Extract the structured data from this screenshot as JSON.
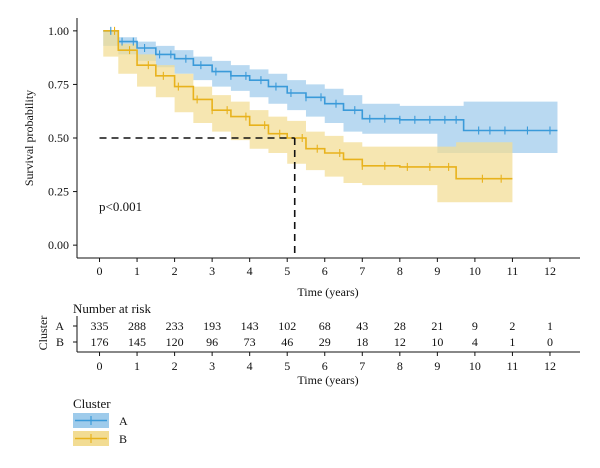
{
  "chart_data": {
    "type": "line",
    "subtype": "kaplan-meier",
    "xlabel": "Time (years)",
    "ylabel": "Survival probability",
    "xlim": [
      -0.6,
      12.8
    ],
    "ylim": [
      -0.06,
      1.06
    ],
    "x_ticks": [
      0,
      1,
      2,
      3,
      4,
      5,
      6,
      7,
      8,
      9,
      10,
      11,
      12
    ],
    "y_ticks": [
      0.0,
      0.25,
      0.5,
      0.75,
      1.0
    ],
    "y_tick_labels": [
      "0.00",
      "0.25",
      "0.50",
      "0.75",
      "1.00"
    ],
    "grid": false,
    "pvalue_text": "p<0.001",
    "median_line": {
      "y": 0.5,
      "x": 5.2
    },
    "series": [
      {
        "name": "A",
        "color": "#3a9ad9",
        "band_color": "#9ecbeb",
        "x": [
          0.1,
          0.5,
          1.0,
          1.5,
          2.0,
          2.5,
          3.0,
          3.5,
          4.0,
          4.5,
          5.0,
          5.5,
          6.0,
          6.5,
          7.0,
          8.0,
          9.0,
          9.7,
          10.0,
          11.0,
          12.2
        ],
        "survival": [
          1.0,
          0.95,
          0.92,
          0.89,
          0.87,
          0.84,
          0.81,
          0.79,
          0.77,
          0.74,
          0.71,
          0.69,
          0.66,
          0.63,
          0.59,
          0.585,
          0.585,
          0.535,
          0.535,
          0.535,
          0.535
        ],
        "lower": [
          1.0,
          0.93,
          0.89,
          0.86,
          0.83,
          0.8,
          0.77,
          0.74,
          0.72,
          0.69,
          0.66,
          0.63,
          0.6,
          0.57,
          0.53,
          0.52,
          0.52,
          0.43,
          0.43,
          0.43,
          0.43
        ],
        "upper": [
          1.0,
          0.97,
          0.95,
          0.93,
          0.91,
          0.88,
          0.86,
          0.84,
          0.82,
          0.8,
          0.77,
          0.75,
          0.73,
          0.7,
          0.66,
          0.65,
          0.65,
          0.67,
          0.67,
          0.67,
          0.67
        ],
        "censor_x": [
          0.3,
          0.6,
          0.9,
          1.2,
          1.6,
          1.9,
          2.3,
          2.7,
          3.1,
          3.5,
          3.9,
          4.3,
          4.7,
          5.1,
          5.5,
          5.9,
          6.3,
          6.8,
          7.2,
          7.6,
          8.0,
          8.4,
          8.8,
          9.2,
          9.5,
          10.1,
          10.4,
          10.8,
          11.4,
          12.0
        ]
      },
      {
        "name": "B",
        "color": "#e8b21c",
        "band_color": "#f2dc93",
        "x": [
          0.1,
          0.5,
          1.0,
          1.5,
          2.0,
          2.5,
          3.0,
          3.5,
          4.0,
          4.5,
          5.0,
          5.5,
          6.0,
          6.5,
          7.0,
          8.0,
          9.0,
          9.5,
          10.0,
          11.0
        ],
        "survival": [
          1.0,
          0.91,
          0.84,
          0.79,
          0.74,
          0.68,
          0.63,
          0.6,
          0.56,
          0.52,
          0.5,
          0.45,
          0.43,
          0.4,
          0.37,
          0.365,
          0.365,
          0.31,
          0.31,
          0.31
        ],
        "lower": [
          1.0,
          0.88,
          0.8,
          0.74,
          0.69,
          0.62,
          0.57,
          0.53,
          0.49,
          0.45,
          0.43,
          0.38,
          0.35,
          0.32,
          0.29,
          0.28,
          0.28,
          0.2,
          0.2,
          0.2
        ],
        "upper": [
          1.0,
          0.94,
          0.89,
          0.84,
          0.8,
          0.74,
          0.7,
          0.67,
          0.63,
          0.6,
          0.58,
          0.53,
          0.51,
          0.48,
          0.46,
          0.46,
          0.46,
          0.48,
          0.48,
          0.48
        ],
        "censor_x": [
          0.4,
          0.8,
          1.3,
          1.7,
          2.1,
          2.6,
          3.0,
          3.4,
          3.9,
          4.4,
          4.8,
          5.4,
          5.8,
          6.4,
          7.0,
          7.6,
          8.2,
          8.8,
          9.3,
          10.2,
          10.7
        ]
      }
    ],
    "risk_table": {
      "title": "Number at risk",
      "strata_axis_label": "Cluster",
      "xlabel": "Time (years)",
      "x_ticks": [
        0,
        1,
        2,
        3,
        4,
        5,
        6,
        7,
        8,
        9,
        10,
        11,
        12
      ],
      "rows": [
        {
          "label": "A",
          "counts": [
            "335",
            "288",
            "233",
            "193",
            "143",
            "102",
            "68",
            "43",
            "28",
            "21",
            "9",
            "2",
            "1"
          ]
        },
        {
          "label": "B",
          "counts": [
            "176",
            "145",
            "120",
            "96",
            "73",
            "46",
            "29",
            "18",
            "12",
            "10",
            "4",
            "1",
            "0"
          ]
        }
      ]
    },
    "legend": {
      "title": "Cluster",
      "position": "bottom-left",
      "items": [
        {
          "label": "A",
          "color": "#3a9ad9",
          "band_color": "#9ecbeb"
        },
        {
          "label": "B",
          "color": "#e8b21c",
          "band_color": "#f2dc93"
        }
      ]
    }
  }
}
